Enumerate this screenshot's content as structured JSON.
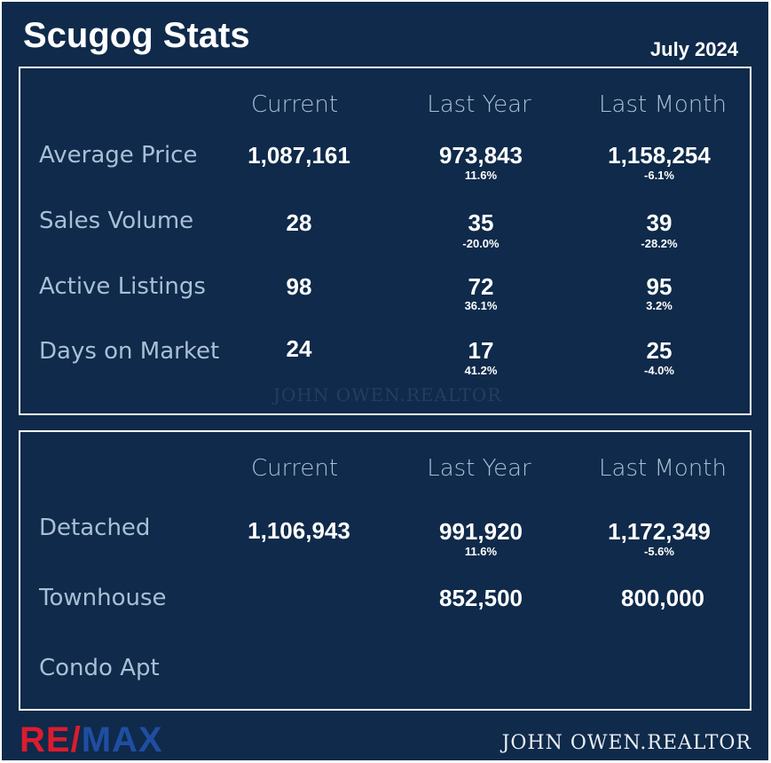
{
  "header": {
    "title": "Scugog Stats",
    "date": "July 2024"
  },
  "panel1": {
    "columns": [
      "Current",
      "Last Year",
      "Last Month"
    ],
    "rows": [
      {
        "label": "Average Price",
        "current": "1,087,161",
        "last_year": "973,843",
        "last_year_change": "11.6%",
        "last_month": "1,158,254",
        "last_month_change": "-6.1%"
      },
      {
        "label": "Sales Volume",
        "current": "28",
        "last_year": "35",
        "last_year_change": "-20.0%",
        "last_month": "39",
        "last_month_change": "-28.2%"
      },
      {
        "label": "Active Listings",
        "current": "98",
        "last_year": "72",
        "last_year_change": "36.1%",
        "last_month": "95",
        "last_month_change": "3.2%"
      },
      {
        "label": "Days on Market",
        "current": "24",
        "last_year": "17",
        "last_year_change": "41.2%",
        "last_month": "25",
        "last_month_change": "-4.0%"
      }
    ],
    "watermark": "JOHN OWEN.REALTOR"
  },
  "panel2": {
    "columns": [
      "Current",
      "Last Year",
      "Last Month"
    ],
    "rows": [
      {
        "label": "Detached",
        "current": "1,106,943",
        "last_year": "991,920",
        "last_year_change": "11.6%",
        "last_month": "1,172,349",
        "last_month_change": "-5.6%"
      },
      {
        "label": "Townhouse",
        "current": "",
        "last_year": "852,500",
        "last_month": "800,000"
      },
      {
        "label": "Condo Apt",
        "current": "",
        "last_year": "",
        "last_month": ""
      }
    ]
  },
  "footer": {
    "logo_text_1": "RE/",
    "logo_text_2": "MAX",
    "name": "JOHN OWEN.REALTOR",
    "colors": {
      "logo_red": "#dc1c2e",
      "logo_blue": "#1f4ea1",
      "background": "#0f2a4a"
    }
  }
}
